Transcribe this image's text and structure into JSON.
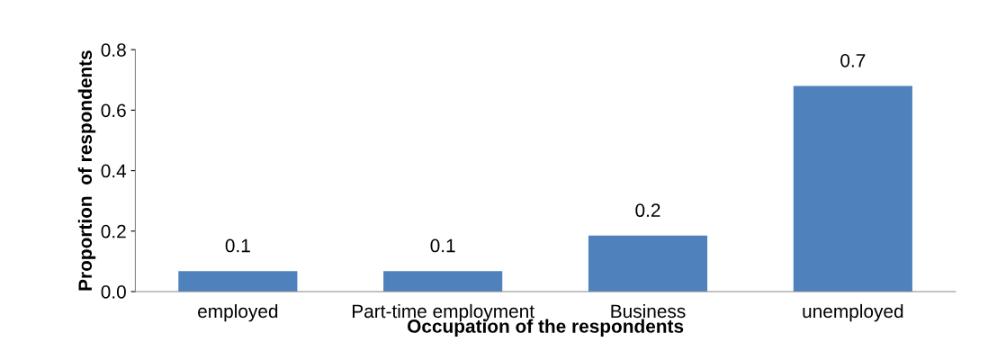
{
  "chart_data": {
    "type": "bar",
    "xlabel": "Occupation of the respondents",
    "ylabel": "Proportion  of respondents",
    "categories": [
      "employed",
      "Part-time employment",
      "Business",
      "unemployed"
    ],
    "values": [
      0.068,
      0.068,
      0.185,
      0.68
    ],
    "value_labels": [
      "0.1",
      "0.1",
      "0.2",
      "0.7"
    ],
    "color": "#4f81bd",
    "ylim": [
      0,
      0.8
    ],
    "yticks": [
      {
        "value": 0,
        "label": "0.0"
      },
      0.2,
      0.4,
      0.6,
      0.8
    ],
    "grid": false
  }
}
